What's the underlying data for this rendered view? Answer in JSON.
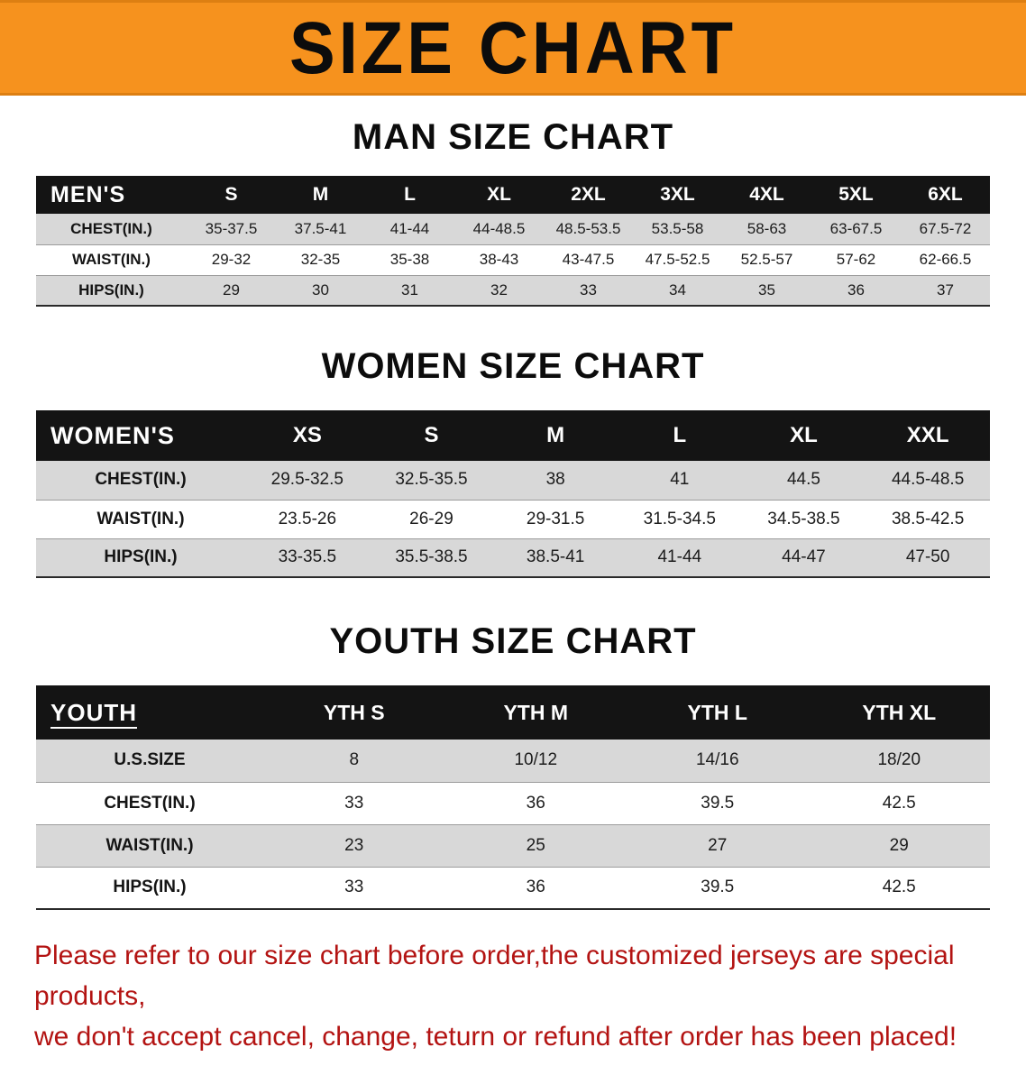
{
  "banner": {
    "title": "SIZE CHART",
    "bg_color": "#f6921e",
    "title_color": "#0c0c0c"
  },
  "colors": {
    "table_header_bg": "#141414",
    "table_header_text": "#ffffff",
    "row_stripe": "#d8d8d8",
    "disclaimer_text": "#b31312"
  },
  "sections": [
    {
      "heading": "MAN SIZE CHART",
      "table": {
        "corner": "MEN'S",
        "columns": [
          "S",
          "M",
          "L",
          "XL",
          "2XL",
          "3XL",
          "4XL",
          "5XL",
          "6XL"
        ],
        "rows": [
          {
            "label": "CHEST(IN.)",
            "values": [
              "35-37.5",
              "37.5-41",
              "41-44",
              "44-48.5",
              "48.5-53.5",
              "53.5-58",
              "58-63",
              "63-67.5",
              "67.5-72"
            ]
          },
          {
            "label": "WAIST(IN.)",
            "values": [
              "29-32",
              "32-35",
              "35-38",
              "38-43",
              "43-47.5",
              "47.5-52.5",
              "52.5-57",
              "57-62",
              "62-66.5"
            ]
          },
          {
            "label": "HIPS(IN.)",
            "values": [
              "29",
              "30",
              "31",
              "32",
              "33",
              "34",
              "35",
              "36",
              "37"
            ]
          }
        ]
      }
    },
    {
      "heading": "WOMEN SIZE CHART",
      "table": {
        "corner": "WOMEN'S",
        "columns": [
          "XS",
          "S",
          "M",
          "L",
          "XL",
          "XXL"
        ],
        "rows": [
          {
            "label": "CHEST(IN.)",
            "values": [
              "29.5-32.5",
              "32.5-35.5",
              "38",
              "41",
              "44.5",
              "44.5-48.5"
            ]
          },
          {
            "label": "WAIST(IN.)",
            "values": [
              "23.5-26",
              "26-29",
              "29-31.5",
              "31.5-34.5",
              "34.5-38.5",
              "38.5-42.5"
            ]
          },
          {
            "label": "HIPS(IN.)",
            "values": [
              "33-35.5",
              "35.5-38.5",
              "38.5-41",
              "41-44",
              "44-47",
              "47-50"
            ]
          }
        ]
      }
    },
    {
      "heading": "YOUTH SIZE CHART",
      "table": {
        "corner": "YOUTH",
        "columns": [
          "YTH S",
          "YTH M",
          "YTH L",
          "YTH XL"
        ],
        "rows": [
          {
            "label": "U.S.SIZE",
            "values": [
              "8",
              "10/12",
              "14/16",
              "18/20"
            ]
          },
          {
            "label": "CHEST(IN.)",
            "values": [
              "33",
              "36",
              "39.5",
              "42.5"
            ]
          },
          {
            "label": "WAIST(IN.)",
            "values": [
              "23",
              "25",
              "27",
              "29"
            ]
          },
          {
            "label": "HIPS(IN.)",
            "values": [
              "33",
              "36",
              "39.5",
              "42.5"
            ]
          }
        ]
      }
    }
  ],
  "disclaimer": {
    "line1": "Please refer to our size chart before order,the customized jerseys are special products,",
    "line2": "we don't accept cancel, change, teturn or refund after order has been placed!"
  }
}
